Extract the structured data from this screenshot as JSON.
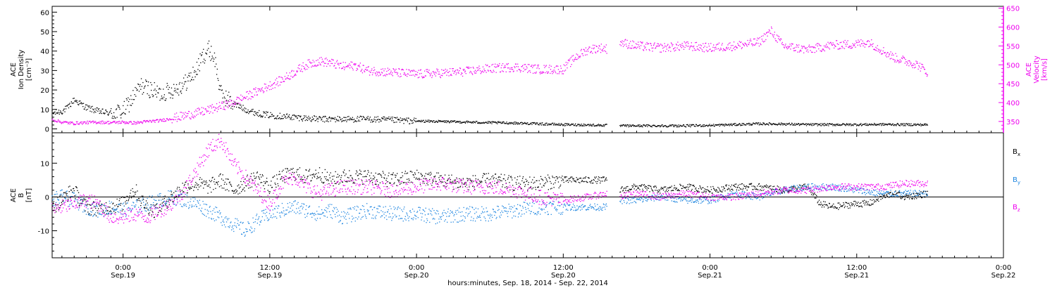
{
  "chart_data": [
    {
      "type": "scatter",
      "panel": "top",
      "xlabel": "hours:minutes, Sep. 18, 2014 - Sep. 22, 2014",
      "x_ticks": [
        {
          "t": 0,
          "line1": "0:00",
          "line2": "Sep.19"
        },
        {
          "t": 12,
          "line1": "12:00",
          "line2": "Sep.19"
        },
        {
          "t": 24,
          "line1": "0:00",
          "line2": "Sep.20"
        },
        {
          "t": 36,
          "line1": "12:00",
          "line2": "Sep.20"
        },
        {
          "t": 48,
          "line1": "0:00",
          "line2": "Sep.21"
        },
        {
          "t": 60,
          "line1": "12:00",
          "line2": "Sep.21"
        },
        {
          "t": 72,
          "line1": "0:00",
          "line2": "Sep.22"
        }
      ],
      "xlim": [
        -5.8,
        72
      ],
      "left_axis": {
        "label_lines": [
          "ACE",
          "Ion Density",
          "[cm⁻³]"
        ],
        "ylim": [
          -2,
          63
        ],
        "ticks": [
          "0",
          "10",
          "20",
          "30",
          "40",
          "50",
          "60"
        ],
        "color": "#000000"
      },
      "right_axis": {
        "label_lines": [
          "ACE",
          "Velocity",
          "[km/s]"
        ],
        "ylim": [
          320,
          655
        ],
        "ticks": [
          "350",
          "400",
          "450",
          "500",
          "550",
          "600",
          "650"
        ],
        "color": "#ee00ee"
      },
      "series": [
        {
          "axis": "left",
          "color": "#000000",
          "points": [
            [
              -5.8,
              8
            ],
            [
              -5,
              9
            ],
            [
              -4.5,
              11
            ],
            [
              -4,
              15
            ],
            [
              -3.5,
              13
            ],
            [
              -3,
              11
            ],
            [
              -2,
              9
            ],
            [
              -1,
              8
            ],
            [
              0,
              9
            ],
            [
              0.5,
              13
            ],
            [
              1,
              18
            ],
            [
              1.5,
              22
            ],
            [
              2,
              21
            ],
            [
              3,
              18
            ],
            [
              4,
              20
            ],
            [
              5,
              23
            ],
            [
              6,
              30
            ],
            [
              6.5,
              37
            ],
            [
              7,
              41
            ],
            [
              7.5,
              36
            ],
            [
              8,
              18
            ],
            [
              9,
              13
            ],
            [
              10,
              10
            ],
            [
              11,
              8
            ],
            [
              12,
              7
            ],
            [
              14,
              6
            ],
            [
              16,
              5
            ],
            [
              18,
              5
            ],
            [
              20,
              5
            ],
            [
              22,
              4.5
            ],
            [
              24,
              4
            ],
            [
              26,
              3.8
            ],
            [
              28,
              3.5
            ],
            [
              30,
              3.2
            ],
            [
              32,
              3
            ],
            [
              34,
              2.6
            ],
            [
              36,
              2.2
            ],
            [
              38,
              2
            ],
            [
              39.6,
              1.8
            ],
            [
              40.6,
              1.6
            ],
            [
              42,
              1.6
            ],
            [
              44,
              1.6
            ],
            [
              46,
              1.6
            ],
            [
              48,
              1.8
            ],
            [
              50,
              2.2
            ],
            [
              52,
              2.6
            ],
            [
              54,
              2.5
            ],
            [
              56,
              2.2
            ],
            [
              58,
              2.2
            ],
            [
              60,
              2.2
            ],
            [
              62,
              2.3
            ],
            [
              64,
              2.2
            ],
            [
              65.8,
              2.1
            ]
          ]
        },
        {
          "axis": "right",
          "color": "#ee00ee",
          "points": [
            [
              -5.8,
              355
            ],
            [
              -5,
              348
            ],
            [
              -4,
              345
            ],
            [
              -3,
              347
            ],
            [
              -2,
              348
            ],
            [
              -1,
              347
            ],
            [
              0,
              348
            ],
            [
              1,
              346
            ],
            [
              2,
              350
            ],
            [
              3,
              352
            ],
            [
              4,
              358
            ],
            [
              5,
              365
            ],
            [
              6,
              372
            ],
            [
              7,
              380
            ],
            [
              8,
              390
            ],
            [
              9,
              400
            ],
            [
              10,
              415
            ],
            [
              11,
              430
            ],
            [
              12,
              445
            ],
            [
              13,
              460
            ],
            [
              14,
              480
            ],
            [
              15,
              500
            ],
            [
              16,
              510
            ],
            [
              17,
              505
            ],
            [
              18,
              495
            ],
            [
              19,
              498
            ],
            [
              20,
              485
            ],
            [
              22,
              480
            ],
            [
              24,
              475
            ],
            [
              26,
              478
            ],
            [
              28,
              482
            ],
            [
              30,
              490
            ],
            [
              32,
              494
            ],
            [
              34,
              488
            ],
            [
              36,
              488
            ],
            [
              37,
              520
            ],
            [
              38,
              540
            ],
            [
              39,
              545
            ],
            [
              39.6,
              542
            ],
            [
              40.6,
              560
            ],
            [
              42,
              550
            ],
            [
              44,
              545
            ],
            [
              46,
              550
            ],
            [
              48,
              545
            ],
            [
              50,
              550
            ],
            [
              52,
              560
            ],
            [
              53,
              590
            ],
            [
              54,
              550
            ],
            [
              56,
              540
            ],
            [
              58,
              552
            ],
            [
              60,
              555
            ],
            [
              61,
              560
            ],
            [
              62,
              540
            ],
            [
              63,
              520
            ],
            [
              64,
              510
            ],
            [
              65,
              500
            ],
            [
              65.8,
              480
            ]
          ]
        }
      ]
    },
    {
      "type": "scatter",
      "panel": "bottom",
      "xlabel": "hours:minutes, Sep. 18, 2014 - Sep. 22, 2014",
      "xlim": [
        -5.8,
        72
      ],
      "left_axis": {
        "label_lines": [
          "ACE",
          "B",
          "[nT]"
        ],
        "ylim": [
          -18,
          19
        ],
        "ticks": [
          "-10",
          "0",
          "10"
        ],
        "color": "#000000"
      },
      "zero_line": true,
      "series": [
        {
          "name": "Bx",
          "legend_main": "B",
          "legend_sub": "x",
          "color": "#000000",
          "points": [
            [
              -5.8,
              -3
            ],
            [
              -5,
              -1
            ],
            [
              -4.5,
              1
            ],
            [
              -4,
              2
            ],
            [
              -3.5,
              -1
            ],
            [
              -3,
              -3
            ],
            [
              -2,
              -3.5
            ],
            [
              -1,
              -3
            ],
            [
              0,
              -2
            ],
            [
              0.5,
              1
            ],
            [
              1,
              2
            ],
            [
              1.5,
              -1
            ],
            [
              2,
              -3
            ],
            [
              2.5,
              -4
            ],
            [
              3,
              -3
            ],
            [
              4,
              0
            ],
            [
              5,
              3
            ],
            [
              6,
              4
            ],
            [
              7,
              3
            ],
            [
              8,
              5
            ],
            [
              9,
              2
            ],
            [
              10,
              4
            ],
            [
              11,
              6
            ],
            [
              12,
              3
            ],
            [
              13,
              6
            ],
            [
              14,
              7
            ],
            [
              15,
              6
            ],
            [
              16,
              7
            ],
            [
              17,
              5
            ],
            [
              18,
              6
            ],
            [
              20,
              6
            ],
            [
              22,
              5
            ],
            [
              24,
              6
            ],
            [
              26,
              5
            ],
            [
              28,
              4
            ],
            [
              30,
              5
            ],
            [
              32,
              4
            ],
            [
              34,
              4
            ],
            [
              36,
              5
            ],
            [
              38,
              5
            ],
            [
              39.6,
              5
            ],
            [
              40.6,
              2
            ],
            [
              42,
              3
            ],
            [
              44,
              2
            ],
            [
              46,
              3
            ],
            [
              48,
              2
            ],
            [
              50,
              3
            ],
            [
              52,
              3
            ],
            [
              54,
              2
            ],
            [
              56,
              3
            ],
            [
              57,
              -2
            ],
            [
              58,
              -3
            ],
            [
              60,
              -2
            ],
            [
              61,
              -2
            ],
            [
              62,
              0
            ],
            [
              63,
              1
            ],
            [
              64,
              0
            ],
            [
              65.8,
              1
            ]
          ]
        },
        {
          "name": "By",
          "legend_main": "B",
          "legend_sub": "y",
          "color": "#1f86e0",
          "points": [
            [
              -5.8,
              -1
            ],
            [
              -5,
              0
            ],
            [
              -4,
              -1
            ],
            [
              -3,
              -3
            ],
            [
              -2,
              -4
            ],
            [
              -1,
              -3
            ],
            [
              0,
              -4
            ],
            [
              1,
              -3
            ],
            [
              2,
              -2
            ],
            [
              3,
              -1
            ],
            [
              4,
              0
            ],
            [
              5,
              -1
            ],
            [
              6,
              -2
            ],
            [
              7,
              -4
            ],
            [
              8,
              -6
            ],
            [
              9,
              -8
            ],
            [
              10,
              -10
            ],
            [
              11,
              -7
            ],
            [
              12,
              -5
            ],
            [
              13,
              -4
            ],
            [
              14,
              -3
            ],
            [
              15,
              -4
            ],
            [
              16,
              -5
            ],
            [
              17,
              -4
            ],
            [
              18,
              -6
            ],
            [
              20,
              -4
            ],
            [
              22,
              -5
            ],
            [
              24,
              -5
            ],
            [
              26,
              -6
            ],
            [
              28,
              -5
            ],
            [
              30,
              -5
            ],
            [
              32,
              -4
            ],
            [
              34,
              -3
            ],
            [
              36,
              -3
            ],
            [
              38,
              -3
            ],
            [
              39.6,
              -3
            ],
            [
              40.6,
              -1
            ],
            [
              42,
              -1
            ],
            [
              44,
              0
            ],
            [
              46,
              -1
            ],
            [
              48,
              -1
            ],
            [
              50,
              1
            ],
            [
              52,
              0
            ],
            [
              54,
              2
            ],
            [
              56,
              3
            ],
            [
              58,
              3
            ],
            [
              60,
              2
            ],
            [
              62,
              1
            ],
            [
              64,
              1
            ],
            [
              65.8,
              1
            ]
          ]
        },
        {
          "name": "Bz",
          "legend_main": "B",
          "legend_sub": "z",
          "color": "#ee00ee",
          "points": [
            [
              -5.8,
              -4
            ],
            [
              -5,
              -3
            ],
            [
              -4,
              -2
            ],
            [
              -3,
              -1
            ],
            [
              -2,
              -2
            ],
            [
              -1,
              -6
            ],
            [
              0,
              -6
            ],
            [
              1,
              -5
            ],
            [
              2,
              -6
            ],
            [
              3,
              -4
            ],
            [
              4,
              -2
            ],
            [
              5,
              2
            ],
            [
              6,
              8
            ],
            [
              7,
              14
            ],
            [
              8,
              17
            ],
            [
              9,
              10
            ],
            [
              10,
              6
            ],
            [
              11,
              2
            ],
            [
              12,
              -2
            ],
            [
              13,
              4
            ],
            [
              14,
              6
            ],
            [
              15,
              3
            ],
            [
              16,
              1
            ],
            [
              17,
              2
            ],
            [
              18,
              3
            ],
            [
              20,
              3
            ],
            [
              22,
              2
            ],
            [
              24,
              3
            ],
            [
              26,
              4
            ],
            [
              28,
              3
            ],
            [
              30,
              3
            ],
            [
              32,
              2
            ],
            [
              34,
              0
            ],
            [
              36,
              -1
            ],
            [
              38,
              0
            ],
            [
              39.6,
              1
            ],
            [
              40.6,
              0
            ],
            [
              42,
              1
            ],
            [
              44,
              0
            ],
            [
              46,
              1
            ],
            [
              48,
              0
            ],
            [
              50,
              0
            ],
            [
              52,
              1
            ],
            [
              54,
              2
            ],
            [
              56,
              2
            ],
            [
              58,
              3
            ],
            [
              60,
              3
            ],
            [
              62,
              3
            ],
            [
              64,
              4
            ],
            [
              65.8,
              4
            ]
          ]
        }
      ]
    }
  ]
}
